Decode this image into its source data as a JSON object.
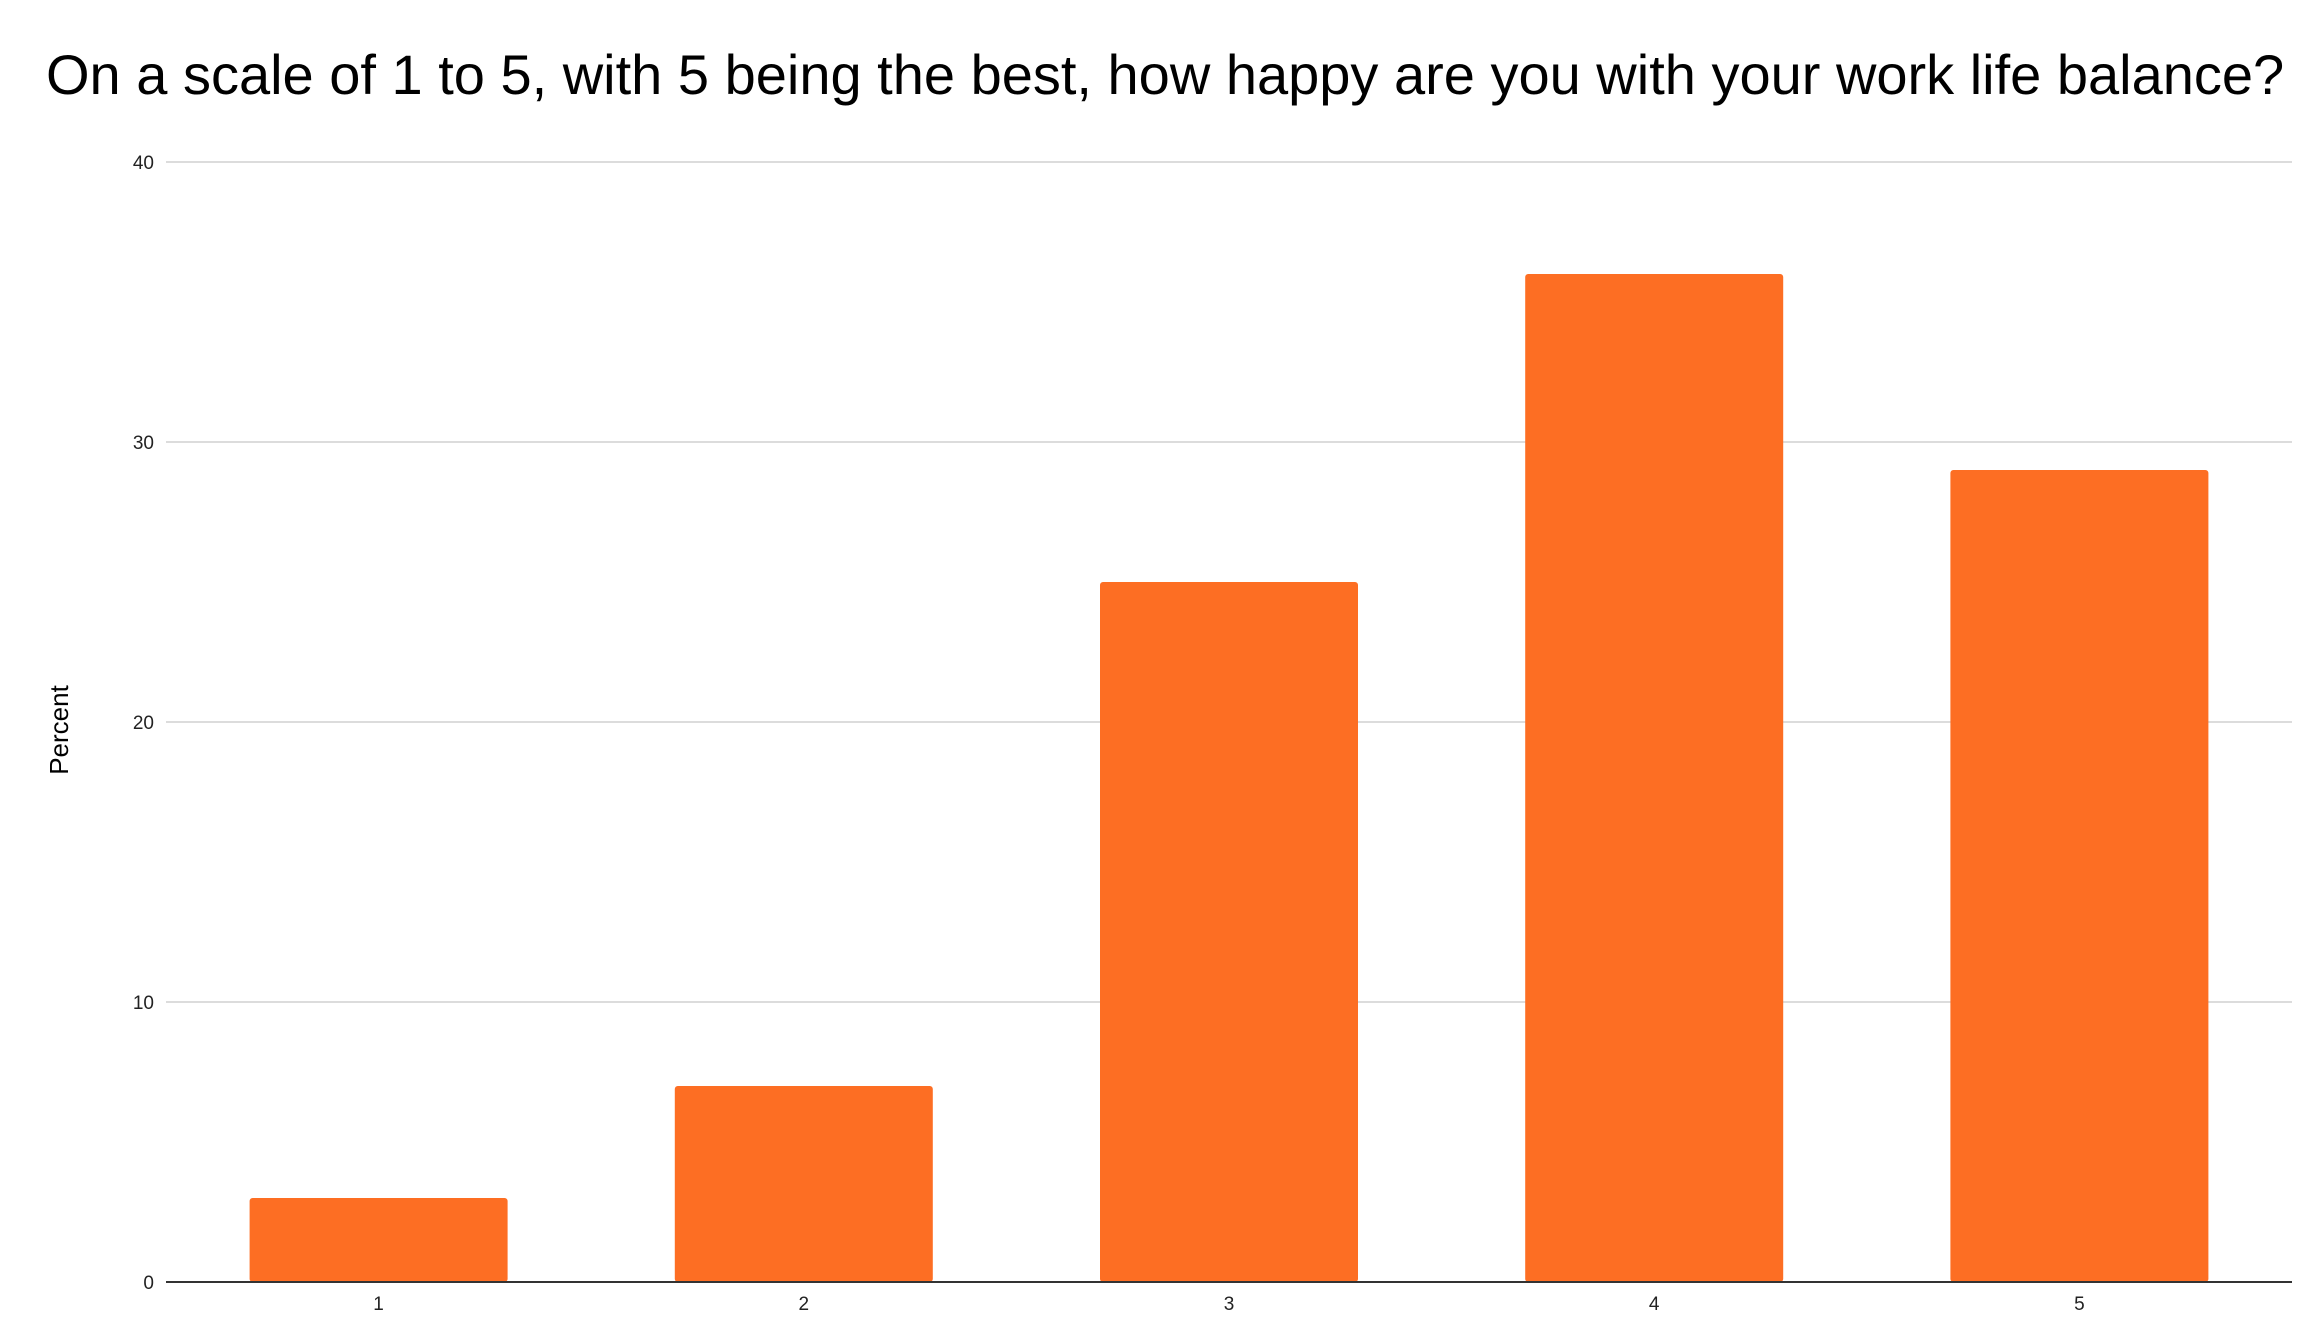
{
  "chart_data": {
    "type": "bar",
    "title": "On a scale of 1 to 5, with 5 being the best, how happy are you with your work life balance?",
    "xlabel": "",
    "ylabel": "Percent",
    "categories": [
      "1",
      "2",
      "3",
      "4",
      "5"
    ],
    "values": [
      3,
      7,
      25,
      36,
      29
    ],
    "ylim": [
      0,
      40
    ],
    "yticks": [
      0,
      10,
      20,
      30,
      40
    ],
    "grid": true,
    "legend": "none",
    "bar_color": "#fd6e23",
    "grid_color": "#d0d0d0",
    "axis_color": "#333333"
  }
}
